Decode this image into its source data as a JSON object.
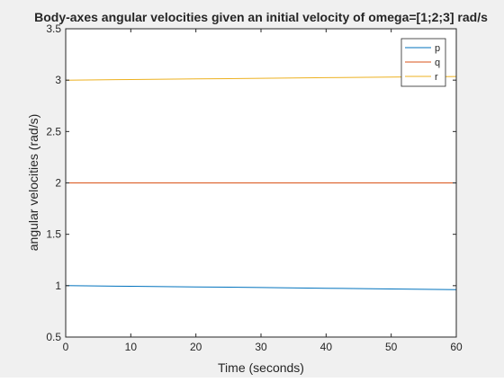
{
  "chart_data": {
    "type": "line",
    "title": "Body-axes angular velocities given an initial velocity of omega=[1;2;3] rad/s",
    "xlabel": "Time (seconds)",
    "ylabel": "angular velocities (rad/s)",
    "xlim": [
      0,
      60
    ],
    "ylim": [
      0.5,
      3.5
    ],
    "xticks": [
      "0",
      "10",
      "20",
      "30",
      "40",
      "50",
      "60"
    ],
    "yticks": [
      "0.5",
      "1",
      "1.5",
      "2",
      "2.5",
      "3",
      "3.5"
    ],
    "grid": false,
    "legend_position": "top-right",
    "series": [
      {
        "name": "p",
        "color": "#0072bd",
        "x": [
          0,
          10,
          20,
          30,
          40,
          50,
          60
        ],
        "values": [
          1.0,
          0.994,
          0.988,
          0.982,
          0.975,
          0.968,
          0.962
        ]
      },
      {
        "name": "q",
        "color": "#d95319",
        "x": [
          0,
          10,
          20,
          30,
          40,
          50,
          60
        ],
        "values": [
          2.0,
          2.0,
          2.0,
          2.0,
          2.0,
          2.0,
          2.0
        ]
      },
      {
        "name": "r",
        "color": "#edb120",
        "x": [
          0,
          10,
          20,
          30,
          40,
          50,
          60
        ],
        "values": [
          3.0,
          3.006,
          3.012,
          3.018,
          3.024,
          3.03,
          3.036
        ]
      }
    ]
  }
}
